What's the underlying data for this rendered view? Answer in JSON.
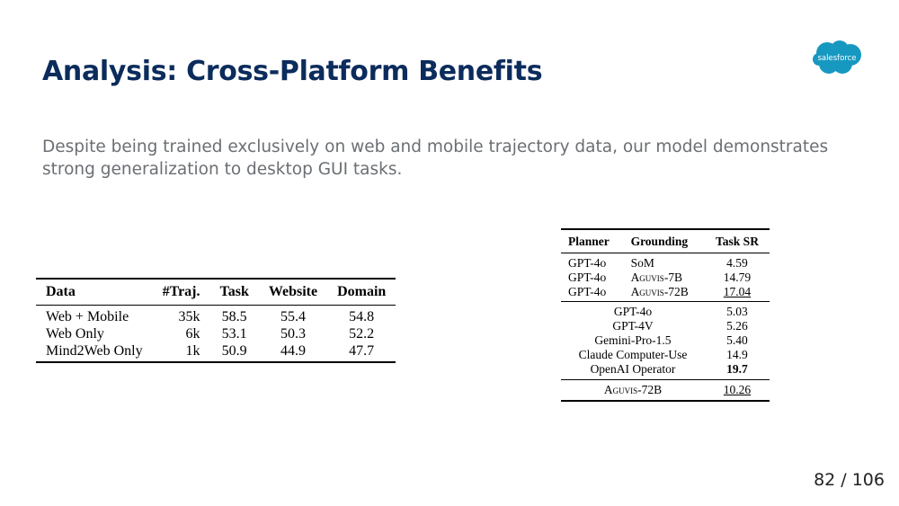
{
  "slide": {
    "title": "Analysis: Cross-Platform Benefits",
    "subtitle": "Despite being trained exclusively on web and mobile trajectory data, our model demonstrates strong generalization to desktop GUI tasks.",
    "logo_text": "salesforce",
    "page_number": "82 / 106"
  },
  "colors": {
    "title": "#0b2c5c",
    "logo": "#1798c1",
    "subtitle": "#6b6f73"
  },
  "table1": {
    "headers": [
      "Data",
      "#Traj.",
      "Task",
      "Website",
      "Domain"
    ],
    "rows": [
      [
        "Web + Mobile",
        "35k",
        "58.5",
        "55.4",
        "54.8"
      ],
      [
        "Web Only",
        "6k",
        "53.1",
        "50.3",
        "52.2"
      ],
      [
        "Mind2Web Only",
        "1k",
        "50.9",
        "44.9",
        "47.7"
      ]
    ]
  },
  "table2": {
    "headers": [
      "Planner",
      "Grounding",
      "Task SR"
    ],
    "group1": [
      [
        "GPT-4o",
        "SoM",
        "4.59"
      ],
      [
        "GPT-4o",
        "Aguvis-7B",
        "14.79"
      ],
      [
        "GPT-4o",
        "Aguvis-72B",
        "17.04"
      ]
    ],
    "group2": [
      [
        "GPT-4o",
        "5.03"
      ],
      [
        "GPT-4V",
        "5.26"
      ],
      [
        "Gemini-Pro-1.5",
        "5.40"
      ],
      [
        "Claude Computer-Use",
        "14.9"
      ],
      [
        "OpenAI Operator",
        "19.7"
      ]
    ],
    "group3": [
      [
        "Aguvis-72B",
        "10.26"
      ]
    ]
  }
}
